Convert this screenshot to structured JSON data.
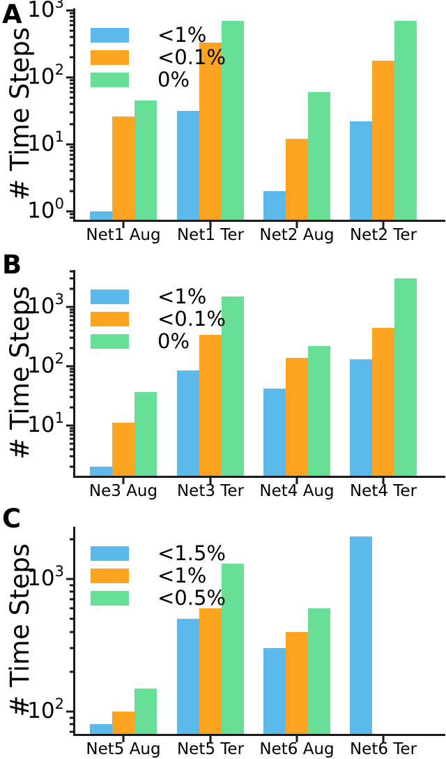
{
  "ylabel": "# Time Steps",
  "colors": {
    "blue": "#5BB9EC",
    "orange": "#FCA320",
    "green": "#69DE96",
    "axis": "#1a1a1a",
    "text": "#000000",
    "background": "#ffffff"
  },
  "chart_data": [
    {
      "type": "bar",
      "panel_label": "A",
      "title": "",
      "xlabel": "",
      "ylabel": "# Time Steps",
      "yscale": "log",
      "grid": false,
      "legend_position": "upper left",
      "categories": [
        "Net1 Aug",
        "Net1 Ter",
        "Net2 Aug",
        "Net2 Ter"
      ],
      "series": [
        {
          "name": "<1%",
          "color_key": "blue",
          "values": [
            1,
            32,
            2,
            22
          ]
        },
        {
          "name": "<0.1%",
          "color_key": "orange",
          "values": [
            26,
            330,
            12,
            180
          ]
        },
        {
          "name": "0%",
          "color_key": "green",
          "values": [
            45,
            700,
            60,
            700
          ]
        }
      ],
      "yticks": [
        "10^0",
        "10^1",
        "10^2",
        "10^3"
      ],
      "ytick_exponents": [
        0,
        1,
        2,
        3
      ],
      "ylim": [
        0.75,
        1070
      ]
    },
    {
      "type": "bar",
      "panel_label": "B",
      "title": "",
      "xlabel": "",
      "ylabel": "# Time Steps",
      "yscale": "log",
      "grid": false,
      "legend_position": "upper left",
      "categories": [
        "Ne3 Aug",
        "Net3 Ter",
        "Net4 Aug",
        "Net4 Ter"
      ],
      "series": [
        {
          "name": "<1%",
          "color_key": "blue",
          "values": [
            2,
            85,
            42,
            130
          ]
        },
        {
          "name": "<0.1%",
          "color_key": "orange",
          "values": [
            11,
            340,
            140,
            440
          ]
        },
        {
          "name": "0%",
          "color_key": "green",
          "values": [
            37,
            1500,
            220,
            3000
          ]
        }
      ],
      "yticks": [
        "10^1",
        "10^2",
        "10^3"
      ],
      "ytick_exponents": [
        1,
        2,
        3
      ],
      "ylim": [
        1.4,
        4200
      ]
    },
    {
      "type": "bar",
      "panel_label": "C",
      "title": "",
      "xlabel": "",
      "ylabel": "# Time Steps",
      "yscale": "log",
      "grid": false,
      "legend_position": "upper left",
      "categories": [
        "Net5 Aug",
        "Net5 Ter",
        "Net6 Aug",
        "Net6 Ter"
      ],
      "series": [
        {
          "name": "<1.5%",
          "color_key": "blue",
          "values": [
            80,
            500,
            300,
            2100
          ]
        },
        {
          "name": "<1%",
          "color_key": "orange",
          "values": [
            100,
            600,
            400,
            null
          ]
        },
        {
          "name": "<0.5%",
          "color_key": "green",
          "values": [
            150,
            1300,
            600,
            null
          ]
        }
      ],
      "yticks": [
        "10^2",
        "10^3"
      ],
      "ytick_exponents": [
        2,
        3
      ],
      "ylim": [
        68,
        2470
      ]
    }
  ]
}
